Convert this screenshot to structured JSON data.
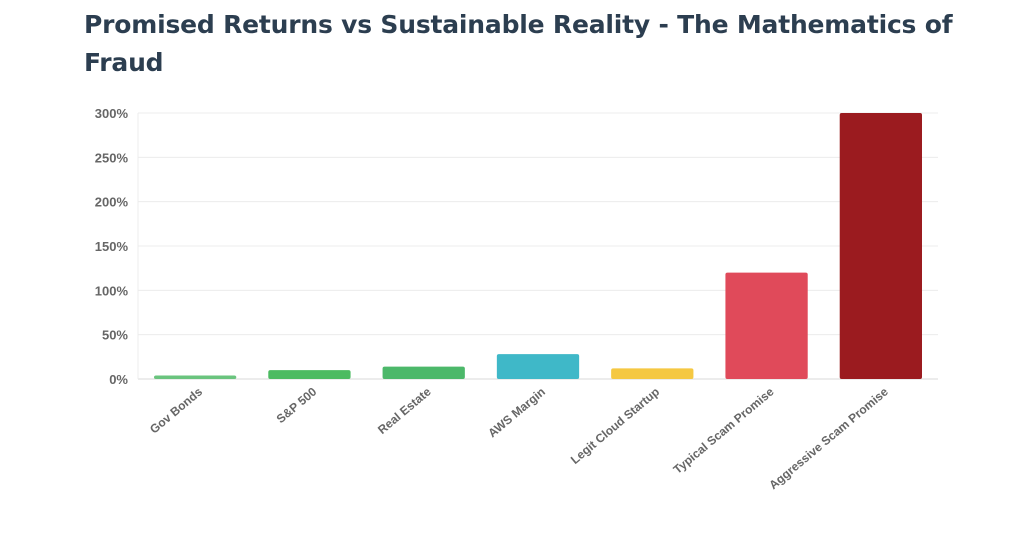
{
  "title": "Promised Returns vs Sustainable Reality - The Mathematics of Fraud",
  "chart_data": {
    "type": "bar",
    "title": "Promised Returns vs Sustainable Reality - The Mathematics of Fraud",
    "categories": [
      "Gov Bonds",
      "S&P 500",
      "Real Estate",
      "AWS Margin",
      "Legit Cloud Startup",
      "Typical Scam Promise",
      "Aggressive Scam Promise"
    ],
    "values": [
      4,
      10,
      14,
      28,
      12,
      120,
      300
    ],
    "colors": [
      "#6ac47e",
      "#4cbb61",
      "#4cb86a",
      "#3fb8c8",
      "#f5c842",
      "#e04a5a",
      "#9b1b1f"
    ],
    "ylim": [
      0,
      300
    ],
    "yticks": [
      0,
      50,
      100,
      150,
      200,
      250,
      300
    ],
    "tick_format": "%",
    "grid": true,
    "xlabel": "",
    "ylabel": ""
  }
}
